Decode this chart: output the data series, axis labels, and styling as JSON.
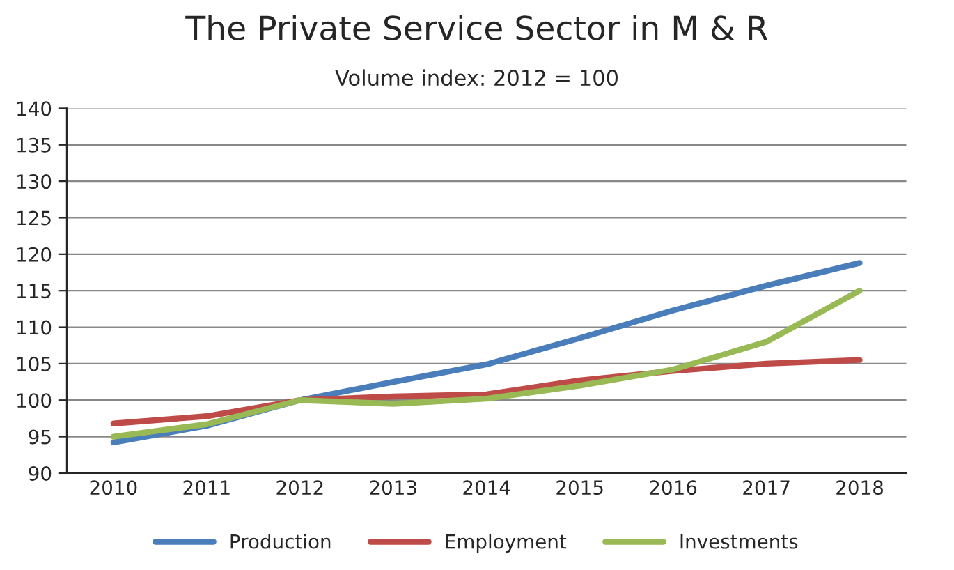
{
  "chart_data": {
    "type": "line",
    "title": "The Private Service Sector in M & R",
    "subtitle": "Volume index: 2012 = 100",
    "categories": [
      "2010",
      "2011",
      "2012",
      "2013",
      "2014",
      "2015",
      "2016",
      "2017",
      "2018"
    ],
    "series": [
      {
        "name": "Production",
        "color": "#4a7ebb",
        "values": [
          94.2,
          96.5,
          100,
          102.5,
          104.9,
          108.5,
          112.3,
          115.7,
          118.8
        ]
      },
      {
        "name": "Employment",
        "color": "#be4b48",
        "values": [
          96.8,
          97.8,
          100,
          100.5,
          100.8,
          102.7,
          104,
          105,
          105.5
        ]
      },
      {
        "name": "Investments",
        "color": "#98b954",
        "values": [
          95,
          96.7,
          100,
          99.5,
          100.2,
          102,
          104.2,
          108,
          115
        ]
      }
    ],
    "ylim": [
      90,
      140
    ],
    "yticks": [
      90,
      95,
      100,
      105,
      110,
      115,
      120,
      125,
      130,
      135,
      140
    ],
    "grid": "y",
    "legend": "bottom",
    "marker": "none",
    "line_style": "solid"
  }
}
